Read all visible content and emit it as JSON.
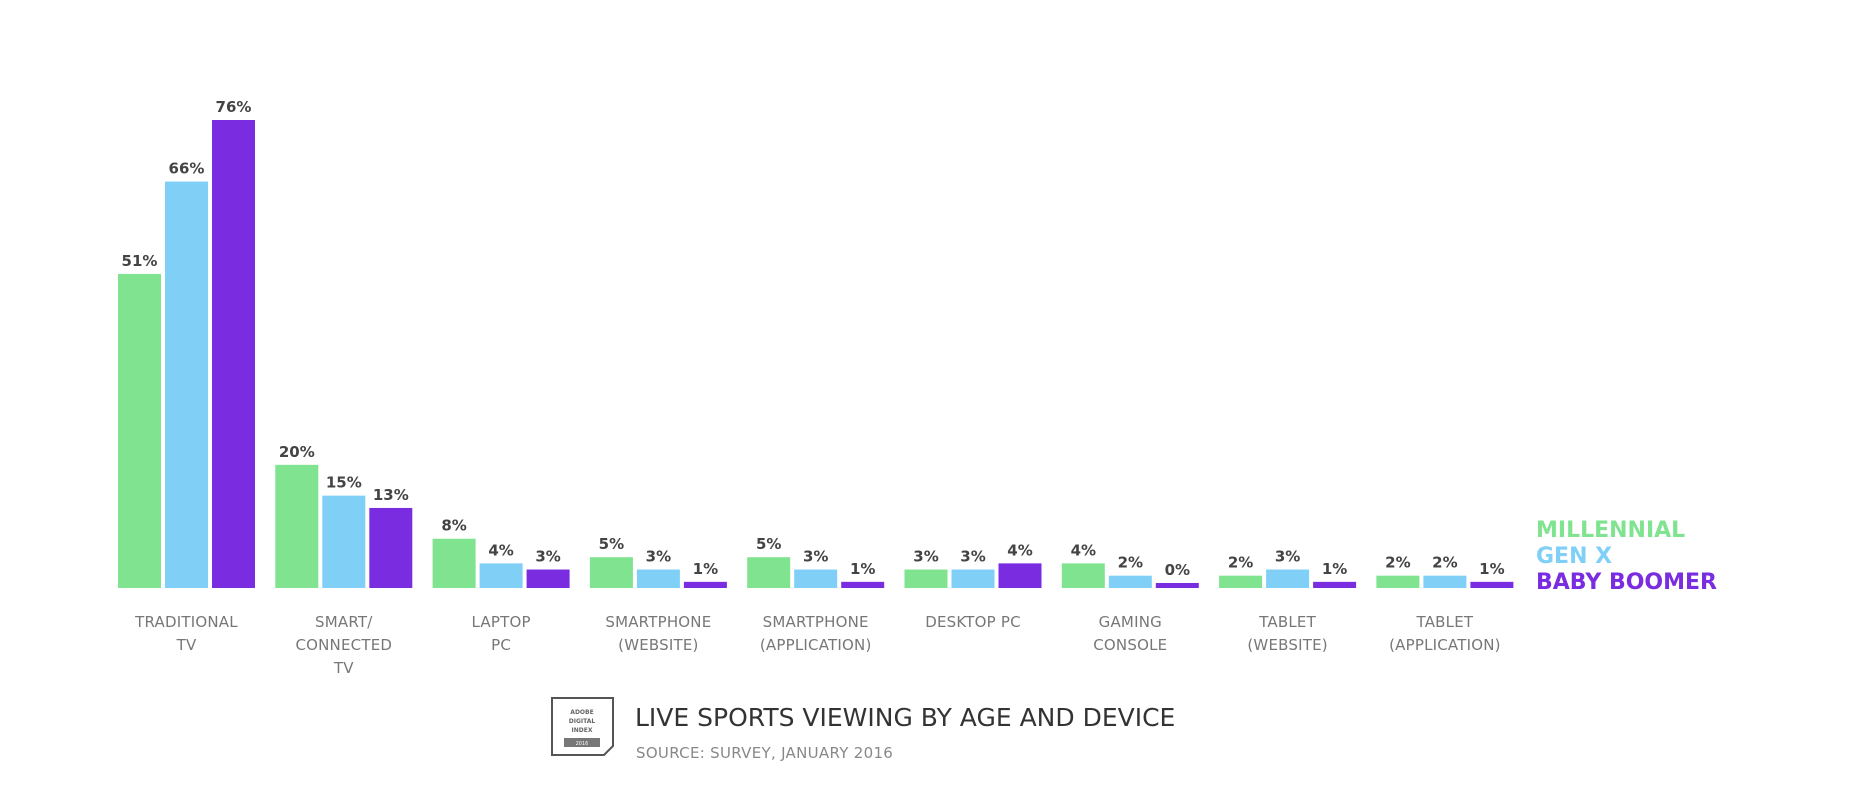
{
  "chart_data": {
    "type": "bar",
    "title": "LIVE SPORTS VIEWING BY AGE AND DEVICE",
    "subtitle": "SOURCE: SURVEY, JANUARY 2016",
    "categories": [
      [
        "TRADITIONAL",
        "TV"
      ],
      [
        "SMART/",
        "CONNECTED",
        "TV"
      ],
      [
        "LAPTOP",
        "PC"
      ],
      [
        "SMARTPHONE",
        "(WEBSITE)"
      ],
      [
        "SMARTPHONE",
        "(APPLICATION)"
      ],
      [
        "DESKTOP PC"
      ],
      [
        "GAMING",
        "CONSOLE"
      ],
      [
        "TABLET",
        "(WEBSITE)"
      ],
      [
        "TABLET",
        "(APPLICATION)"
      ]
    ],
    "series": [
      {
        "name": "MILLENNIAL",
        "color": "#7fe38f",
        "values": [
          51,
          20,
          8,
          5,
          5,
          3,
          4,
          2,
          2
        ]
      },
      {
        "name": "GEN X",
        "color": "#7fcff7",
        "values": [
          66,
          15,
          4,
          3,
          3,
          3,
          2,
          3,
          2
        ]
      },
      {
        "name": "BABY BOOMER",
        "color": "#7a2de0",
        "values": [
          76,
          13,
          3,
          1,
          1,
          4,
          0,
          1,
          1
        ]
      }
    ],
    "value_suffix": "%",
    "legend_position": "right",
    "grid": false,
    "ylim": [
      0,
      76
    ]
  },
  "logo": {
    "lines": [
      "ADOBE",
      "DIGITAL",
      "INDEX"
    ],
    "year": "2016"
  }
}
